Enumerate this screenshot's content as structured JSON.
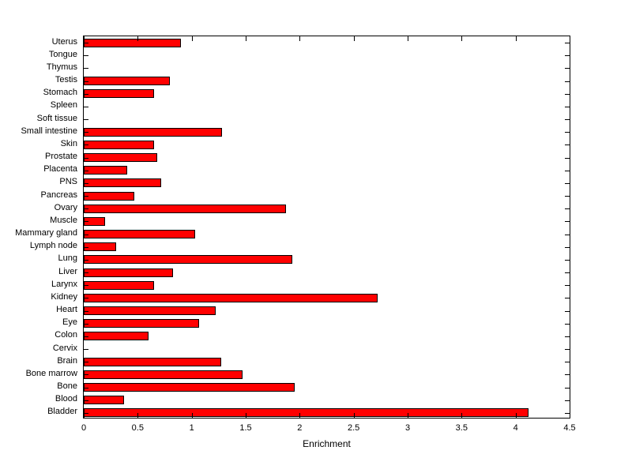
{
  "chart_data": {
    "type": "bar",
    "orientation": "horizontal",
    "title": "",
    "xlabel": "Enrichment",
    "ylabel": "",
    "xlim": [
      0,
      4.5
    ],
    "xticks": [
      0,
      0.5,
      1,
      1.5,
      2,
      2.5,
      3,
      3.5,
      4,
      4.5
    ],
    "grid": false,
    "legend": false,
    "bar_color": "#FF0000",
    "bar_edge_color": "#000000",
    "categories_top_to_bottom": [
      "Uterus",
      "Tongue",
      "Thymus",
      "Testis",
      "Stomach",
      "Spleen",
      "Soft tissue",
      "Small intestine",
      "Skin",
      "Prostate",
      "Placenta",
      "PNS",
      "Pancreas",
      "Ovary",
      "Muscle",
      "Mammary gland",
      "Lymph node",
      "Lung",
      "Liver",
      "Larynx",
      "Kidney",
      "Heart",
      "Eye",
      "Colon",
      "Cervix",
      "Brain",
      "Bone marrow",
      "Bone",
      "Blood",
      "Bladder"
    ],
    "values": [
      0.9,
      0,
      0,
      0.8,
      0.65,
      0,
      0,
      1.28,
      0.65,
      0.68,
      0.4,
      0.72,
      0.47,
      1.87,
      0.2,
      1.03,
      0.3,
      1.93,
      0.83,
      0.65,
      2.72,
      1.22,
      1.07,
      0.6,
      0,
      1.27,
      1.47,
      1.95,
      0.37,
      4.12
    ]
  }
}
